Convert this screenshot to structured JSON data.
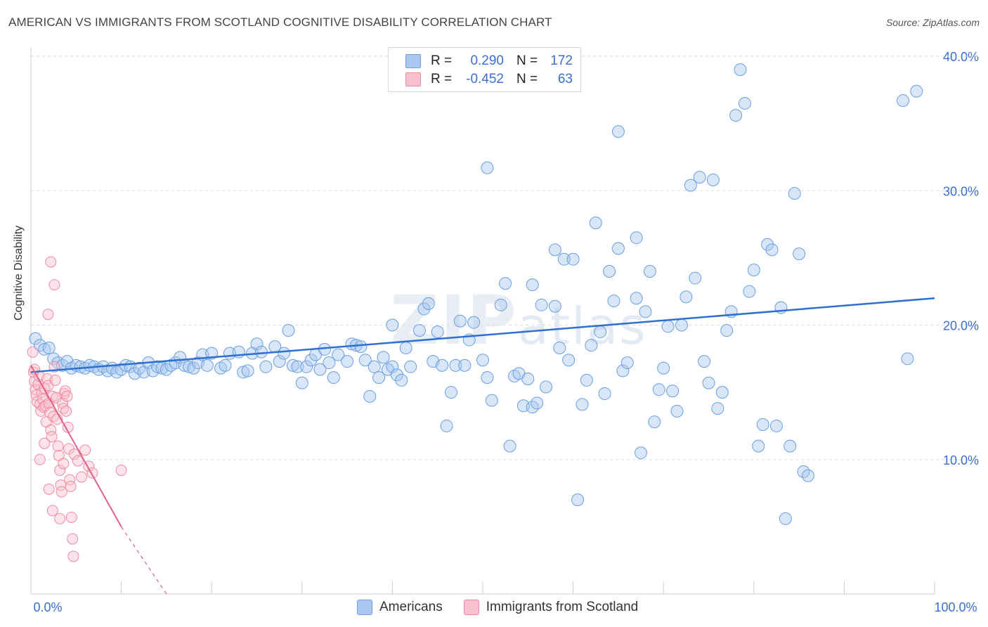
{
  "title": "AMERICAN VS IMMIGRANTS FROM SCOTLAND COGNITIVE DISABILITY CORRELATION CHART",
  "source": "Source: ZipAtlas.com",
  "watermark": {
    "main": "ZIP",
    "sub": "atlas"
  },
  "legend": {
    "rows": [
      {
        "r_label": "R =",
        "r_value": "0.290",
        "n_label": "N =",
        "n_value": "172",
        "color": "#a8c8f0",
        "border": "#6a9fe0"
      },
      {
        "r_label": "R =",
        "r_value": "-0.452",
        "n_label": "N =",
        "n_value": "63",
        "color": "#f8c0cf",
        "border": "#ee8aa5"
      }
    ]
  },
  "bottom_legend": [
    {
      "label": "Americans",
      "color": "#a8c8f0",
      "border": "#6a9fe0"
    },
    {
      "label": "Immigrants from Scotland",
      "color": "#f8c0cf",
      "border": "#ee8aa5"
    }
  ],
  "chart_data": {
    "type": "scatter",
    "xlabel": "",
    "ylabel": "Cognitive Disability",
    "xlim": [
      0,
      100
    ],
    "ylim": [
      0,
      40
    ],
    "x_tick_labels": [
      "0.0%",
      "100.0%"
    ],
    "y_tick_labels": [
      "10.0%",
      "20.0%",
      "30.0%",
      "40.0%"
    ],
    "y_ticks": [
      10,
      20,
      30,
      40
    ],
    "grid": "horizontal dashed",
    "colors": {
      "americans": "#6a9fe0",
      "americans_line": "#2e6fd0",
      "scotland": "#ee8aa5",
      "scotland_line": "#e0608a"
    },
    "series": [
      {
        "name": "Americans",
        "trend": {
          "x0": 0,
          "y0": 16.5,
          "x1": 100,
          "y1": 22.0
        },
        "points": [
          [
            0.5,
            19
          ],
          [
            1,
            18.5
          ],
          [
            1.5,
            18.2
          ],
          [
            2,
            18.3
          ],
          [
            2.5,
            17.5
          ],
          [
            3,
            17.2
          ],
          [
            3.5,
            17.0
          ],
          [
            4,
            17.3
          ],
          [
            4.5,
            16.8
          ],
          [
            5,
            17.0
          ],
          [
            5.5,
            16.9
          ],
          [
            6,
            16.8
          ],
          [
            6.5,
            17.0
          ],
          [
            7,
            16.9
          ],
          [
            7.5,
            16.7
          ],
          [
            8,
            16.9
          ],
          [
            8.5,
            16.6
          ],
          [
            9,
            16.8
          ],
          [
            9.5,
            16.5
          ],
          [
            10,
            16.7
          ],
          [
            10.5,
            17.0
          ],
          [
            11,
            16.9
          ],
          [
            11.5,
            16.4
          ],
          [
            12,
            16.8
          ],
          [
            12.5,
            16.5
          ],
          [
            13,
            17.2
          ],
          [
            13.5,
            16.6
          ],
          [
            14,
            16.9
          ],
          [
            14.5,
            16.8
          ],
          [
            15,
            16.7
          ],
          [
            15.5,
            17.0
          ],
          [
            16,
            17.2
          ],
          [
            16.5,
            17.6
          ],
          [
            17,
            17.0
          ],
          [
            17.5,
            16.9
          ],
          [
            18,
            16.8
          ],
          [
            18.5,
            17.2
          ],
          [
            19,
            17.8
          ],
          [
            19.5,
            17.0
          ],
          [
            20,
            17.9
          ],
          [
            21,
            16.8
          ],
          [
            21.5,
            17.0
          ],
          [
            22,
            17.9
          ],
          [
            23,
            18.0
          ],
          [
            23.5,
            16.5
          ],
          [
            24,
            16.6
          ],
          [
            24.5,
            17.9
          ],
          [
            25,
            18.6
          ],
          [
            25.5,
            18.0
          ],
          [
            26,
            16.9
          ],
          [
            27,
            18.4
          ],
          [
            27.5,
            17.3
          ],
          [
            28,
            17.9
          ],
          [
            28.5,
            19.6
          ],
          [
            29,
            17.0
          ],
          [
            29.5,
            16.9
          ],
          [
            30,
            15.7
          ],
          [
            30.5,
            16.9
          ],
          [
            31,
            17.4
          ],
          [
            31.5,
            17.8
          ],
          [
            32,
            16.7
          ],
          [
            32.5,
            18.2
          ],
          [
            33,
            17.2
          ],
          [
            33.5,
            16.1
          ],
          [
            34,
            17.8
          ],
          [
            35,
            17.3
          ],
          [
            35.5,
            18.6
          ],
          [
            36,
            18.5
          ],
          [
            36.5,
            18.4
          ],
          [
            37,
            17.4
          ],
          [
            37.5,
            14.7
          ],
          [
            38,
            16.9
          ],
          [
            38.5,
            16.1
          ],
          [
            39,
            17.6
          ],
          [
            39.5,
            16.7
          ],
          [
            40,
            16.9
          ],
          [
            40.5,
            16.3
          ],
          [
            41,
            15.9
          ],
          [
            41.5,
            18.3
          ],
          [
            42,
            16.9
          ],
          [
            43,
            19.6
          ],
          [
            43.5,
            21.2
          ],
          [
            44,
            21.6
          ],
          [
            44.5,
            17.3
          ],
          [
            45,
            19.5
          ],
          [
            46,
            12.5
          ],
          [
            46.5,
            15.0
          ],
          [
            47,
            17.0
          ],
          [
            47.5,
            20.3
          ],
          [
            48,
            17.0
          ],
          [
            48.5,
            18.9
          ],
          [
            49,
            20.2
          ],
          [
            50,
            17.4
          ],
          [
            50.5,
            16.1
          ],
          [
            51,
            14.4
          ],
          [
            52,
            21.5
          ],
          [
            52.5,
            23.1
          ],
          [
            53,
            11.0
          ],
          [
            53.5,
            16.2
          ],
          [
            54,
            16.4
          ],
          [
            54.5,
            14.0
          ],
          [
            55,
            16.0
          ],
          [
            55.5,
            13.9
          ],
          [
            56,
            14.2
          ],
          [
            56.5,
            21.5
          ],
          [
            57,
            15.4
          ],
          [
            58,
            25.6
          ],
          [
            58.5,
            18.3
          ],
          [
            59,
            24.9
          ],
          [
            59.5,
            17.4
          ],
          [
            60,
            24.9
          ],
          [
            60.5,
            7.0
          ],
          [
            61,
            14.1
          ],
          [
            61.5,
            15.9
          ],
          [
            62,
            18.5
          ],
          [
            62.5,
            27.6
          ],
          [
            63,
            19.5
          ],
          [
            63.5,
            14.9
          ],
          [
            64,
            24.0
          ],
          [
            64.5,
            21.8
          ],
          [
            65,
            25.7
          ],
          [
            65.5,
            16.6
          ],
          [
            66,
            17.2
          ],
          [
            67,
            26.5
          ],
          [
            67.5,
            10.5
          ],
          [
            68,
            21.0
          ],
          [
            68.5,
            24.0
          ],
          [
            69,
            12.8
          ],
          [
            69.5,
            15.2
          ],
          [
            70,
            16.8
          ],
          [
            70.5,
            19.9
          ],
          [
            71,
            15.1
          ],
          [
            71.5,
            13.6
          ],
          [
            72,
            20.0
          ],
          [
            72.5,
            22.1
          ],
          [
            73,
            30.4
          ],
          [
            73.5,
            23.5
          ],
          [
            74,
            31.0
          ],
          [
            74.5,
            17.3
          ],
          [
            75,
            15.7
          ],
          [
            75.5,
            30.8
          ],
          [
            76,
            13.8
          ],
          [
            76.5,
            15.0
          ],
          [
            77,
            19.6
          ],
          [
            77.5,
            21.0
          ],
          [
            78,
            35.6
          ],
          [
            78.5,
            39.0
          ],
          [
            79,
            36.5
          ],
          [
            79.5,
            22.5
          ],
          [
            80,
            24.1
          ],
          [
            80.5,
            11.0
          ],
          [
            81,
            12.6
          ],
          [
            81.5,
            26.0
          ],
          [
            82,
            25.6
          ],
          [
            82.5,
            12.5
          ],
          [
            83,
            21.3
          ],
          [
            83.5,
            5.6
          ],
          [
            84,
            11.0
          ],
          [
            84.5,
            29.8
          ],
          [
            85,
            25.3
          ],
          [
            85.5,
            9.1
          ],
          [
            86,
            8.8
          ],
          [
            96.5,
            36.7
          ],
          [
            98,
            37.4
          ],
          [
            97,
            17.5
          ],
          [
            65,
            34.4
          ],
          [
            50.5,
            31.7
          ],
          [
            55.5,
            23.0
          ],
          [
            58,
            21.4
          ],
          [
            67,
            22.0
          ],
          [
            40,
            20.0
          ],
          [
            45.5,
            17.0
          ]
        ]
      },
      {
        "name": "Immigrants from Scotland",
        "trend": {
          "x0": 0,
          "y0": 17.0,
          "x1": 10,
          "y1": 5.0
        },
        "trend_dashed_to": {
          "x": 15,
          "y": 0
        },
        "points": [
          [
            0.2,
            18.0
          ],
          [
            0.3,
            16.5
          ],
          [
            0.4,
            15.8
          ],
          [
            0.5,
            15.2
          ],
          [
            0.6,
            14.8
          ],
          [
            0.7,
            14.3
          ],
          [
            0.8,
            15.6
          ],
          [
            0.9,
            16.2
          ],
          [
            1.0,
            14.1
          ],
          [
            1.1,
            13.6
          ],
          [
            1.2,
            15.0
          ],
          [
            1.3,
            14.5
          ],
          [
            1.4,
            13.9
          ],
          [
            1.5,
            15.3
          ],
          [
            1.6,
            14.0
          ],
          [
            1.7,
            12.8
          ],
          [
            1.8,
            16.0
          ],
          [
            1.9,
            15.5
          ],
          [
            2.0,
            14.2
          ],
          [
            2.1,
            13.5
          ],
          [
            2.2,
            12.2
          ],
          [
            2.3,
            11.7
          ],
          [
            2.4,
            14.7
          ],
          [
            2.5,
            13.2
          ],
          [
            2.6,
            16.9
          ],
          [
            2.7,
            15.9
          ],
          [
            2.8,
            14.6
          ],
          [
            2.9,
            13.0
          ],
          [
            3.0,
            11.0
          ],
          [
            3.1,
            10.3
          ],
          [
            3.2,
            9.2
          ],
          [
            3.3,
            8.1
          ],
          [
            3.4,
            7.6
          ],
          [
            3.5,
            14.2
          ],
          [
            3.6,
            13.8
          ],
          [
            3.7,
            14.9
          ],
          [
            3.8,
            15.1
          ],
          [
            3.9,
            13.6
          ],
          [
            4.0,
            14.7
          ],
          [
            4.1,
            12.4
          ],
          [
            4.2,
            10.8
          ],
          [
            4.3,
            8.5
          ],
          [
            4.4,
            8.0
          ],
          [
            4.5,
            5.7
          ],
          [
            4.6,
            4.1
          ],
          [
            4.7,
            2.8
          ],
          [
            2.2,
            24.7
          ],
          [
            2.6,
            23.0
          ],
          [
            1.9,
            20.8
          ],
          [
            3.6,
            9.7
          ],
          [
            4.8,
            10.4
          ],
          [
            5.2,
            9.9
          ],
          [
            5.6,
            8.7
          ],
          [
            6.0,
            10.7
          ],
          [
            6.4,
            9.5
          ],
          [
            6.8,
            9.0
          ],
          [
            1.0,
            10.0
          ],
          [
            1.5,
            11.2
          ],
          [
            2.0,
            7.8
          ],
          [
            2.4,
            6.2
          ],
          [
            3.2,
            5.6
          ],
          [
            10.0,
            9.2
          ],
          [
            0.4,
            16.7
          ]
        ]
      }
    ]
  }
}
